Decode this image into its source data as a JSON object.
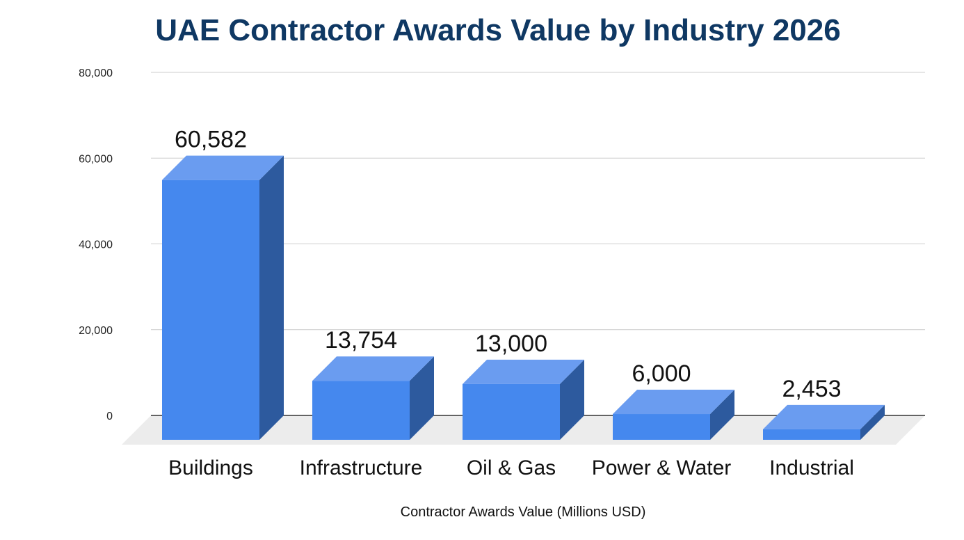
{
  "chart_data": {
    "type": "bar",
    "style": "3d",
    "title": "UAE Contractor Awards Value by Industry 2026",
    "xlabel": "Contractor Awards Value (Millions USD)",
    "ylabel": "",
    "categories": [
      "Buildings",
      "Infrastructure",
      "Oil & Gas",
      "Power & Water",
      "Industrial"
    ],
    "values": [
      60582,
      13754,
      13000,
      6000,
      2453
    ],
    "data_labels": [
      "60,582",
      "13,754",
      "13,000",
      "6,000",
      "2,453"
    ],
    "ylim": [
      0,
      80000
    ],
    "yticks": [
      0,
      20000,
      40000,
      60000,
      80000
    ],
    "ytick_labels": [
      "0",
      "20,000",
      "40,000",
      "60,000",
      "80,000"
    ],
    "grid": true,
    "legend": "none",
    "colors": {
      "title": "#0f3863",
      "bar_front": "#4588ee",
      "bar_top": "#6a9cf0",
      "bar_side": "#2d5a9e",
      "floor": "#ececec",
      "grid": "#cccccc"
    }
  }
}
